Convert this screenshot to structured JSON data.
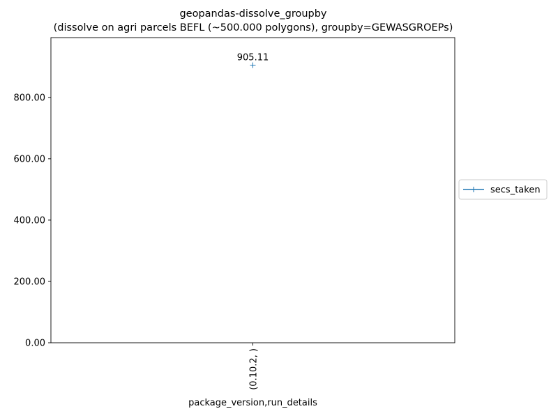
{
  "chart_data": {
    "type": "line",
    "title_line1": "geopandas-dissolve_groupby",
    "title_line2": "(dissolve on agri parcels BEFL (~500.000 polygons), groupby=GEWASGROEPs)",
    "xlabel": "package_version,run_details",
    "ylabel": "",
    "categories": [
      "(0.10.2, )"
    ],
    "series": [
      {
        "name": "secs_taken",
        "values": [
          905.11
        ],
        "color": "#1f77b4",
        "marker": "+"
      }
    ],
    "data_labels": [
      "905.11"
    ],
    "y_ticks": [
      0,
      200,
      400,
      600,
      800
    ],
    "y_tick_labels": [
      "0.00",
      "200.00",
      "400.00",
      "600.00",
      "800.00"
    ],
    "ylim": [
      0,
      995
    ],
    "grid": false,
    "legend_position": "outside-right"
  }
}
